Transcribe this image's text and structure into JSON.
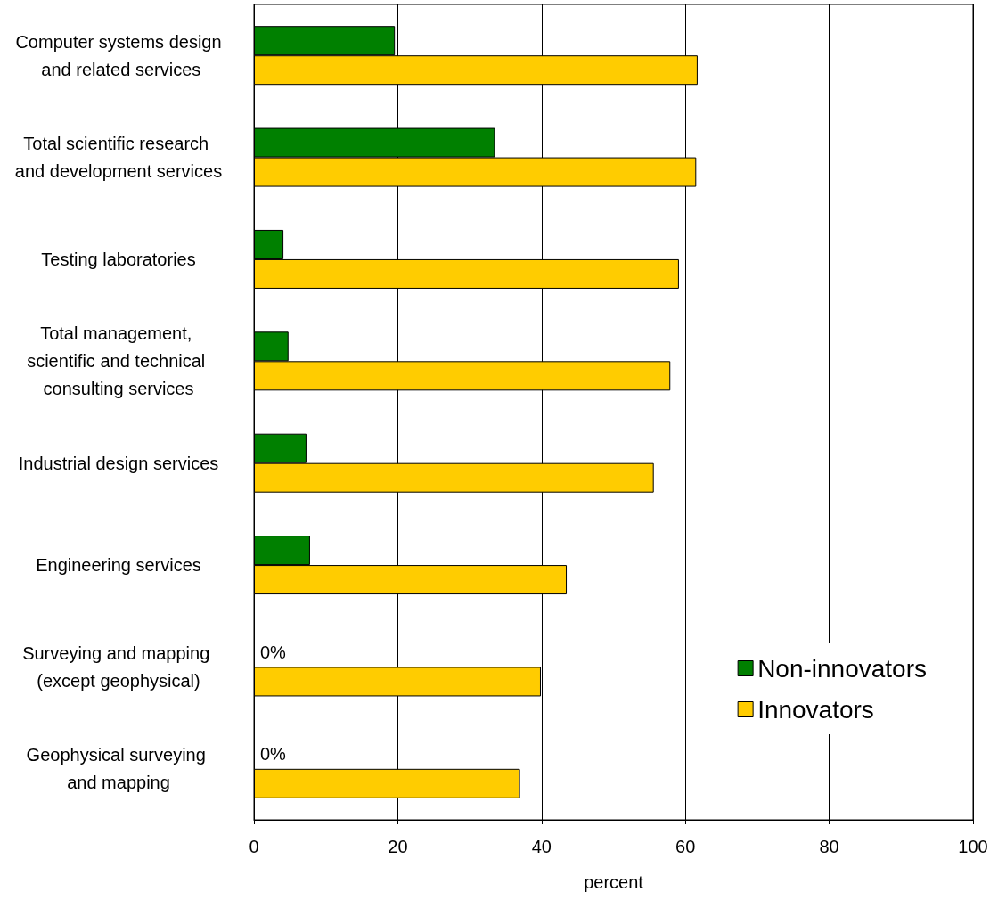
{
  "chart_data": {
    "type": "bar",
    "orientation": "horizontal",
    "xlabel": "percent",
    "categories": [
      "Computer systems design and related services",
      "Total scientific research and development services",
      "Testing laboratories",
      "Total management, scientific and technical consulting services",
      "Industrial design services",
      "Engineering services",
      "Surveying and mapping (except geophysical)",
      "Geophysical surveying and mapping"
    ],
    "series": [
      {
        "name": "Non-innovators",
        "color": "#008000",
        "values": [
          19.6,
          33.5,
          4.1,
          4.8,
          7.3,
          7.8,
          0,
          0
        ],
        "value_labels": [
          null,
          null,
          null,
          null,
          null,
          null,
          "0%",
          "0%"
        ]
      },
      {
        "name": "Innovators",
        "color": "#ffcc00",
        "values": [
          61.7,
          61.5,
          59.1,
          57.9,
          55.6,
          43.5,
          39.9,
          37.0
        ]
      }
    ],
    "xlim": [
      0,
      100
    ],
    "xticks": [
      0,
      20,
      40,
      60,
      80,
      100
    ],
    "grid": "x",
    "legend": "bottom right"
  }
}
